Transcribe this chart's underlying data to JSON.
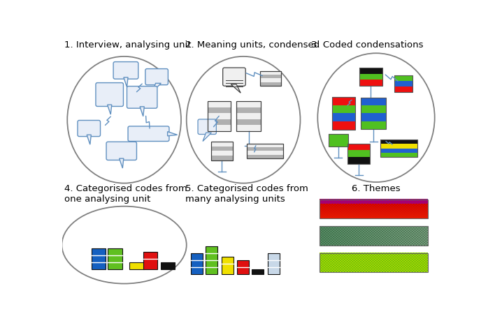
{
  "labels": {
    "1": "1. Interview, analysing unit",
    "2": "2. Meaning units, condensed",
    "3": "3. Coded condensations",
    "4": "4. Categorised codes from\none analysing unit",
    "5": "5. Categorised codes from\nmany analysing units",
    "6": "6. Themes"
  },
  "label_fontsize": 9.5,
  "background_color": "#ffffff",
  "speech_bubble_fill": "#e8eef8",
  "speech_bubble_edge": "#6090c0",
  "bar_colors_4": [
    "#1560c0",
    "#60c020",
    "#f0e000",
    "#e01010",
    "#111111"
  ],
  "bar_heights_4": [
    3,
    3,
    1,
    2.5,
    1
  ],
  "bar_colors_5": [
    "#1560c0",
    "#60c020",
    "#f0e000",
    "#e01010",
    "#111111",
    "#c8d8e8"
  ],
  "bar_heights_5": [
    3,
    4,
    2.5,
    2,
    0.7,
    3
  ]
}
